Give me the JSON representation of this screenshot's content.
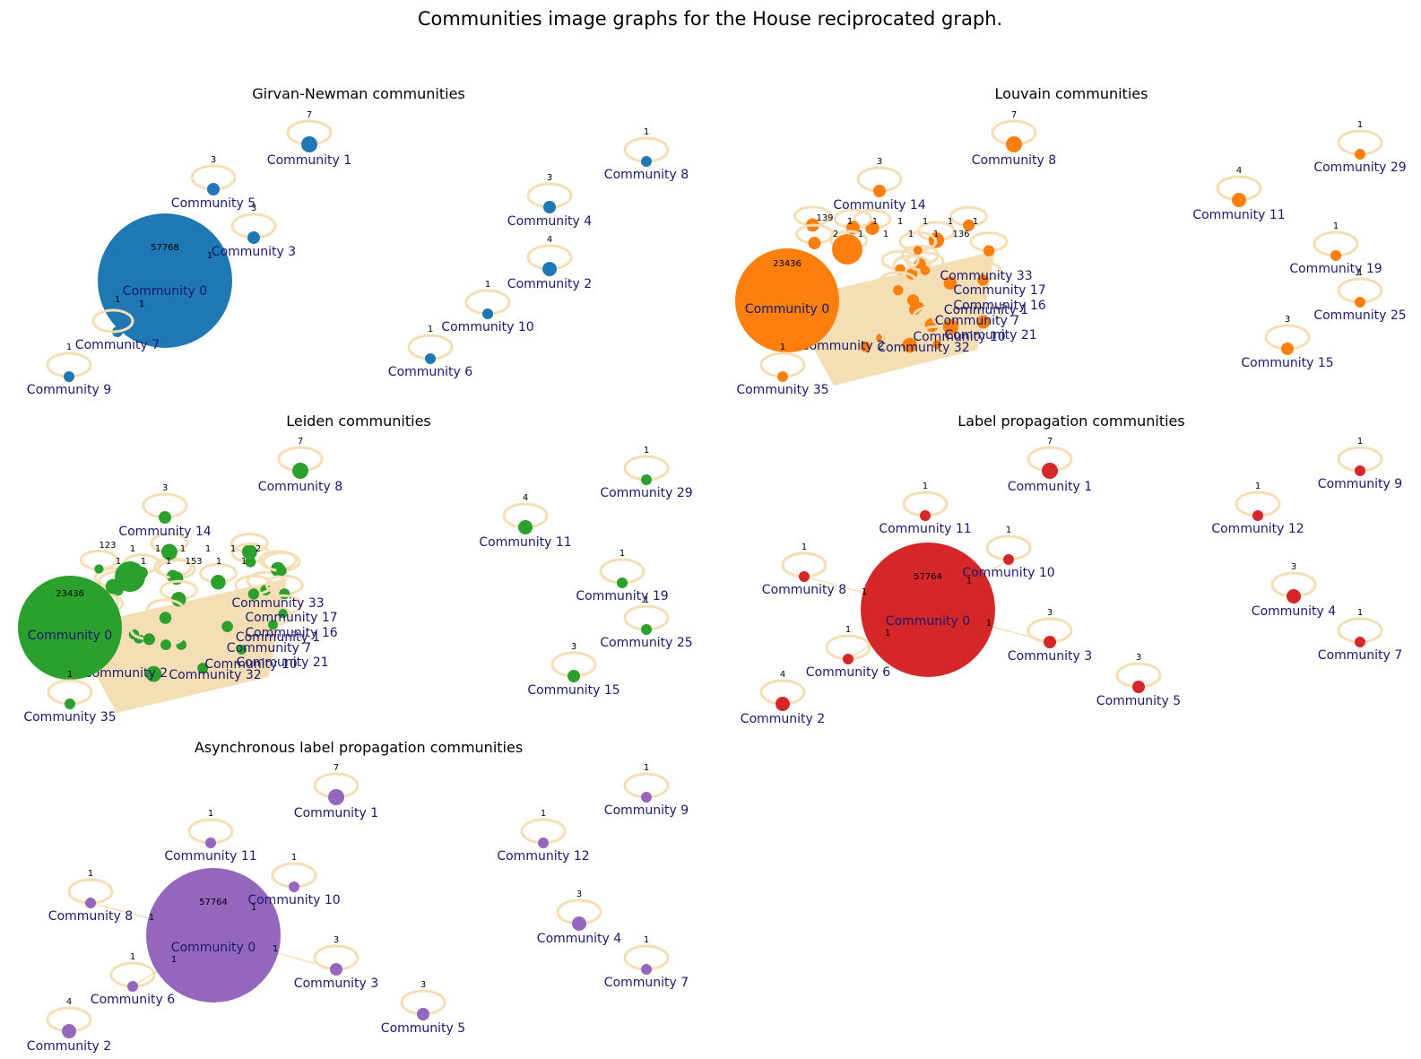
{
  "title": "Communities image graphs for the House reciprocated graph.",
  "panels": [
    {
      "title": "Girvan-Newman communities",
      "color": "#1f77b4",
      "big": {
        "label": "Community 0",
        "value": "57768"
      },
      "nodes": [
        {
          "label": "Community 1",
          "value": "7"
        },
        {
          "label": "Community 5",
          "value": "3"
        },
        {
          "label": "Community 3",
          "value": "3"
        },
        {
          "label": "Community 7",
          "value": ""
        },
        {
          "label": "Community 9",
          "value": "1"
        },
        {
          "label": "Community 8",
          "value": "1"
        },
        {
          "label": "Community 4",
          "value": "3"
        },
        {
          "label": "Community 2",
          "value": "4"
        },
        {
          "label": "Community 10",
          "value": "1"
        },
        {
          "label": "Community 6",
          "value": "1"
        }
      ],
      "edge_labels": [
        "1",
        "1",
        "1"
      ]
    },
    {
      "title": "Louvain communities",
      "color": "#ff7f0e",
      "big": {
        "label": "Community 0",
        "value": "23436"
      },
      "nodes": [
        {
          "label": "Community 8",
          "value": "7"
        },
        {
          "label": "Community 14",
          "value": "3"
        },
        {
          "label": "Community 29",
          "value": "1"
        },
        {
          "label": "Community 11",
          "value": "4"
        },
        {
          "label": "Community 19",
          "value": "1"
        },
        {
          "label": "Community 25",
          "value": "1"
        },
        {
          "label": "Community 15",
          "value": "3"
        },
        {
          "label": "Community 35",
          "value": "1"
        }
      ],
      "cluster_labels": [
        "Community 33",
        "Community 17",
        "Community 16",
        "Community 1",
        "Community 7",
        "Community 21",
        "Community 10",
        "Community 32",
        "Community 2"
      ],
      "cluster_values": [
        "139",
        "1",
        "1",
        "1",
        "1",
        "1",
        "1",
        "2",
        "1",
        "1",
        "1",
        "1",
        "136"
      ]
    },
    {
      "title": "Leiden communities",
      "color": "#2ca02c",
      "big": {
        "label": "Community 0",
        "value": "23436"
      },
      "nodes": [
        {
          "label": "Community 8",
          "value": "7"
        },
        {
          "label": "Community 14",
          "value": "3"
        },
        {
          "label": "Community 29",
          "value": "1"
        },
        {
          "label": "Community 11",
          "value": "4"
        },
        {
          "label": "Community 19",
          "value": "1"
        },
        {
          "label": "Community 25",
          "value": "1"
        },
        {
          "label": "Community 15",
          "value": "3"
        },
        {
          "label": "Community 35",
          "value": "1"
        }
      ],
      "cluster_labels": [
        "Community 33",
        "Community 17",
        "Community 16",
        "Community 1",
        "Community 7",
        "Community 21",
        "Community 10",
        "Community 32",
        "Community 2"
      ],
      "cluster_values": [
        "123",
        "1",
        "1",
        "1",
        "1",
        "1",
        "2",
        "1",
        "1",
        "1",
        "153",
        "1",
        "1"
      ]
    },
    {
      "title": "Label propagation communities",
      "color": "#d62728",
      "big": {
        "label": "Community 0",
        "value": "57764"
      },
      "nodes": [
        {
          "label": "Community 1",
          "value": "7"
        },
        {
          "label": "Community 9",
          "value": "1"
        },
        {
          "label": "Community 11",
          "value": "1"
        },
        {
          "label": "Community 12",
          "value": "1"
        },
        {
          "label": "Community 8",
          "value": "1"
        },
        {
          "label": "Community 10",
          "value": "1"
        },
        {
          "label": "Community 4",
          "value": "3"
        },
        {
          "label": "Community 3",
          "value": "3"
        },
        {
          "label": "Community 7",
          "value": "1"
        },
        {
          "label": "Community 6",
          "value": "1"
        },
        {
          "label": "Community 5",
          "value": "3"
        },
        {
          "label": "Community 2",
          "value": "4"
        }
      ],
      "edge_labels": [
        "1",
        "1",
        "1",
        "1"
      ]
    },
    {
      "title": "Asynchronous label propagation communities",
      "color": "#9467bd",
      "big": {
        "label": "Community 0",
        "value": "57764"
      },
      "nodes": [
        {
          "label": "Community 1",
          "value": "7"
        },
        {
          "label": "Community 9",
          "value": "1"
        },
        {
          "label": "Community 11",
          "value": "1"
        },
        {
          "label": "Community 12",
          "value": "1"
        },
        {
          "label": "Community 8",
          "value": "1"
        },
        {
          "label": "Community 10",
          "value": "1"
        },
        {
          "label": "Community 4",
          "value": "3"
        },
        {
          "label": "Community 3",
          "value": "3"
        },
        {
          "label": "Community 7",
          "value": "1"
        },
        {
          "label": "Community 6",
          "value": "1"
        },
        {
          "label": "Community 5",
          "value": "3"
        },
        {
          "label": "Community 2",
          "value": "4"
        }
      ],
      "edge_labels": [
        "1",
        "1",
        "1",
        "1"
      ]
    }
  ]
}
